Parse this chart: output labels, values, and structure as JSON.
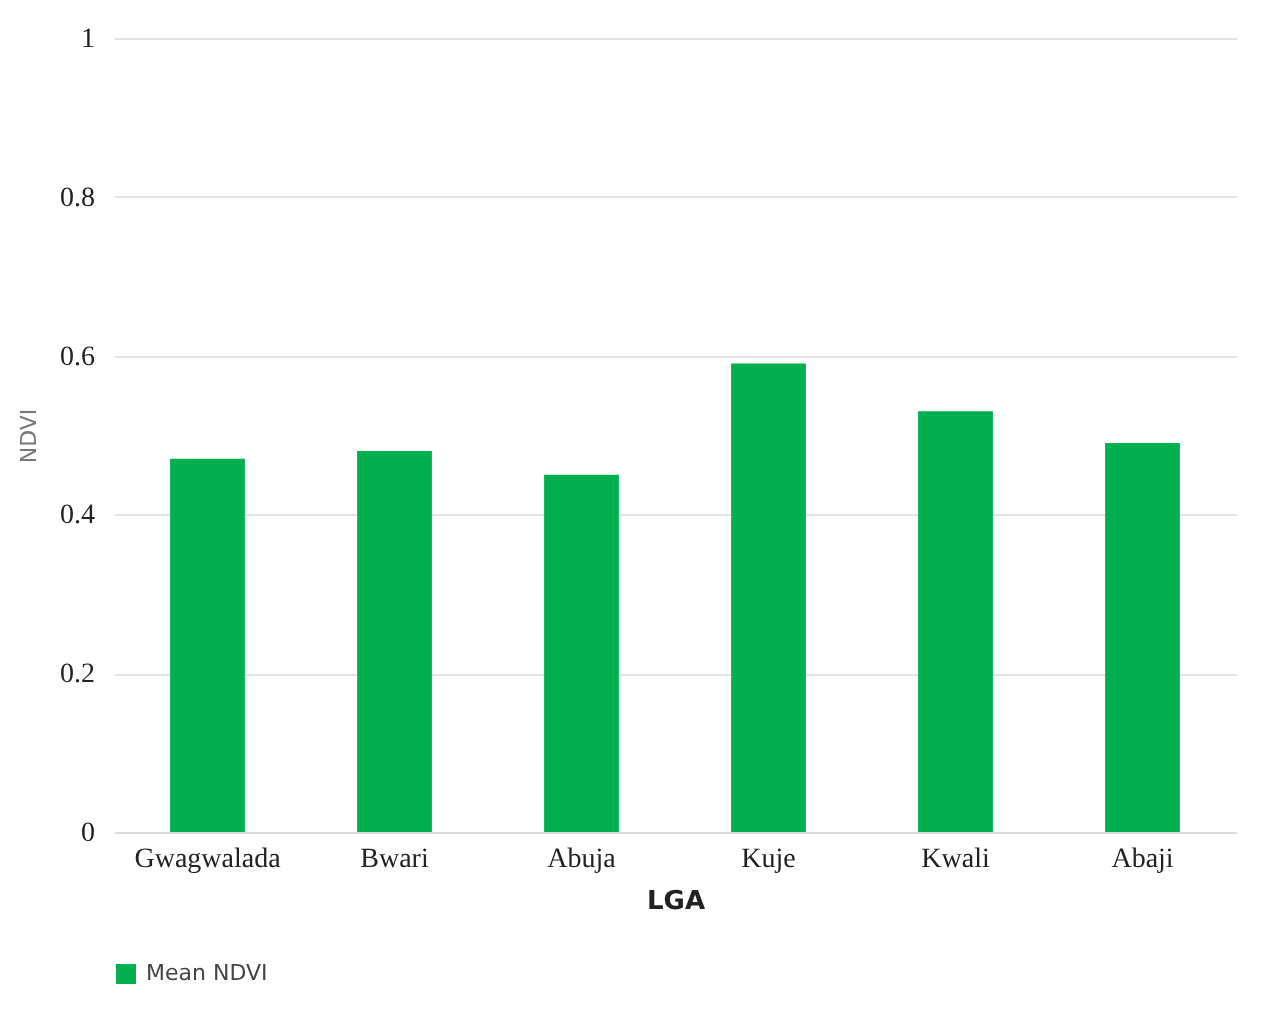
{
  "chart_data": {
    "type": "bar",
    "xlabel": "LGA",
    "ylabel": "NDVI",
    "categories": [
      "Gwagwalada",
      "Bwari",
      "Abuja",
      "Kuje",
      "Kwali",
      "Abaji"
    ],
    "series": [
      {
        "name": "Mean NDVI",
        "color": "#00b050",
        "values": [
          0.47,
          0.48,
          0.45,
          0.59,
          0.53,
          0.49
        ]
      }
    ],
    "ylim": [
      0,
      1
    ],
    "yticks": [
      0,
      0.2,
      0.4,
      0.6,
      0.8,
      1
    ],
    "grid": "y",
    "legend": "bottom"
  }
}
